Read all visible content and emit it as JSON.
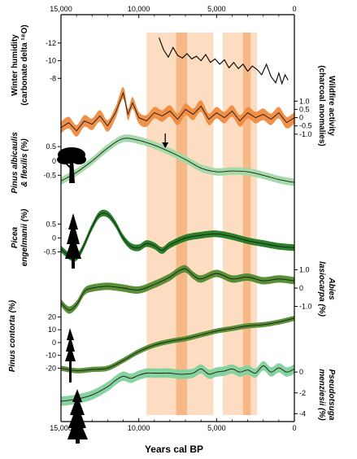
{
  "chart_data": {
    "type": "line",
    "xlabel": "Years cal BP",
    "x_ticks": [
      "15,000",
      "10,000",
      "5,000",
      "0"
    ],
    "xlim": [
      15000,
      0
    ],
    "shaded_bands": [
      {
        "from": 9500,
        "to": 5200,
        "color": "#fbd7b6"
      },
      {
        "from": 7600,
        "to": 6900,
        "color": "#f5b27c"
      },
      {
        "from": 4600,
        "to": 2400,
        "color": "#fbd7b6"
      },
      {
        "from": 3300,
        "to": 2800,
        "color": "#f5b27c"
      }
    ],
    "annotation": {
      "type": "arrow",
      "x": 8300
    },
    "panels": [
      {
        "id": "humidity",
        "label_lines": [
          "Winter humidity",
          "(carbonate delta ¹⁸O)"
        ],
        "label_side": "left",
        "ticks": [
          "-12",
          "-10",
          "-8"
        ],
        "tick_values": [
          -12,
          -10,
          -8
        ],
        "ylim": [
          -13,
          -6
        ],
        "inverted": true,
        "color": "#000000",
        "x": [
          8700,
          8400,
          8100,
          7800,
          7500,
          7200,
          6900,
          6600,
          6300,
          6000,
          5700,
          5400,
          5100,
          4800,
          4500,
          4200,
          3900,
          3600,
          3300,
          3000,
          2700,
          2400,
          2100,
          1800,
          1500,
          1200,
          1000,
          800,
          600,
          400
        ],
        "y": [
          -12.6,
          -11.2,
          -10.4,
          -11.5,
          -10.6,
          -10.3,
          -10.8,
          -10.2,
          -10.5,
          -10.0,
          -10.7,
          -9.8,
          -10.2,
          -9.6,
          -10.1,
          -9.2,
          -9.8,
          -9.1,
          -9.6,
          -8.8,
          -9.4,
          -9.0,
          -8.4,
          -9.6,
          -8.2,
          -7.5,
          -8.6,
          -7.4,
          -8.4,
          -7.8
        ]
      },
      {
        "id": "wildfire",
        "label_lines": [
          "Wildfire activity",
          "(charcoal anomalies)"
        ],
        "label_side": "right",
        "ticks": [
          "1.0",
          "0.5",
          "0",
          "-0.5",
          "-1.0"
        ],
        "tick_values": [
          1.0,
          0.5,
          0,
          -0.5,
          -1.0
        ],
        "ylim": [
          -1.5,
          2.0
        ],
        "color": "#1a1a1a",
        "band_color": "#f08a3e",
        "band_width": 0.35,
        "x": [
          15000,
          14500,
          14000,
          13500,
          13000,
          12500,
          12000,
          11500,
          11000,
          10700,
          10400,
          10000,
          9500,
          9000,
          8500,
          8000,
          7500,
          7000,
          6500,
          6000,
          5500,
          5000,
          4500,
          4000,
          3500,
          3000,
          2500,
          2000,
          1500,
          1000,
          500,
          0
        ],
        "y": [
          -0.6,
          -0.3,
          -0.8,
          -0.2,
          -0.4,
          0.1,
          -0.5,
          0.3,
          1.5,
          0.2,
          0.9,
          0.0,
          -0.2,
          0.3,
          0.1,
          0.4,
          -0.1,
          0.5,
          0.2,
          0.7,
          -0.1,
          0.3,
          0.0,
          0.4,
          -0.2,
          0.3,
          0.0,
          0.2,
          -0.1,
          0.3,
          -0.3,
          0.0
        ]
      },
      {
        "id": "pinus-albicaulis",
        "label_lines": [
          "Pinus albicaulis",
          "& flexilis (%)"
        ],
        "label_side": "left",
        "italic": true,
        "ticks": [
          "0.5",
          "0",
          "-0.5"
        ],
        "tick_values": [
          0.5,
          0,
          -0.5
        ],
        "ylim": [
          -1.2,
          1.3
        ],
        "color": "#1a1a1a",
        "band_color": "#9fd9a7",
        "band_width": 0.13,
        "x": [
          15000,
          14000,
          13000,
          12000,
          11000,
          10000,
          9000,
          8000,
          7000,
          6000,
          5000,
          4000,
          3000,
          2000,
          1000,
          0
        ],
        "y": [
          -0.7,
          -0.4,
          0.0,
          0.45,
          0.78,
          0.72,
          0.55,
          0.32,
          0.05,
          -0.25,
          -0.38,
          -0.35,
          -0.38,
          -0.5,
          -0.65,
          -0.75
        ]
      },
      {
        "id": "picea",
        "label_lines": [
          "Picea",
          "engelmanii (%)"
        ],
        "label_side": "left",
        "italic": true,
        "ticks": [
          "0.5",
          "0",
          "-0.5"
        ],
        "tick_values": [
          0.5,
          0,
          -0.5
        ],
        "ylim": [
          -1.1,
          1.3
        ],
        "color": "#1a1a1a",
        "band_color": "#1d7a1d",
        "band_width": 0.12,
        "x": [
          15000,
          14000,
          13000,
          12500,
          12000,
          11500,
          11000,
          10500,
          10000,
          9500,
          9000,
          8500,
          8000,
          7000,
          6000,
          5000,
          4000,
          3000,
          2000,
          1000,
          0
        ],
        "y": [
          -0.4,
          -0.7,
          0.4,
          0.85,
          0.85,
          0.5,
          0.0,
          -0.3,
          -0.35,
          -0.2,
          -0.28,
          -0.45,
          -0.25,
          0.0,
          0.1,
          0.15,
          0.05,
          -0.1,
          -0.2,
          -0.3,
          -0.35
        ]
      },
      {
        "id": "abies",
        "label_lines": [
          "Abies",
          "lasiocarpa (%)"
        ],
        "label_side": "right",
        "italic": true,
        "ticks": [
          "1.0",
          "0",
          "-1.0"
        ],
        "tick_values": [
          1.0,
          0,
          -1.0
        ],
        "ylim": [
          -1.6,
          1.6
        ],
        "color": "#1a1a1a",
        "band_color": "#4f8a2a",
        "band_width": 0.2,
        "x": [
          15000,
          14500,
          14000,
          13500,
          13000,
          12000,
          11000,
          10000,
          9000,
          8000,
          7500,
          7000,
          6500,
          6000,
          5000,
          4000,
          3000,
          2000,
          1000,
          0
        ],
        "y": [
          -0.8,
          -1.2,
          -0.9,
          -0.2,
          0.0,
          0.1,
          0.0,
          -0.1,
          0.2,
          0.6,
          0.9,
          1.05,
          0.7,
          0.5,
          0.8,
          0.5,
          0.6,
          0.4,
          0.5,
          0.4
        ]
      },
      {
        "id": "pinus-contorta",
        "label_lines": [
          "Pinus contorta (%)"
        ],
        "label_side": "left",
        "italic": true,
        "ticks": [
          "20",
          "10",
          "0",
          "-10",
          "-20"
        ],
        "tick_values": [
          20,
          10,
          0,
          -10,
          -20
        ],
        "ylim": [
          -28,
          26
        ],
        "color": "#1a1a1a",
        "band_color": "#4f8a2a",
        "band_width": 2,
        "x": [
          15000,
          14000,
          13000,
          12000,
          11000,
          10000,
          9000,
          8000,
          7000,
          6000,
          5000,
          4000,
          3000,
          2000,
          1000,
          0
        ],
        "y": [
          -20,
          -22,
          -21,
          -20,
          -14,
          -7,
          -2,
          1,
          3,
          6,
          9,
          11,
          13,
          14,
          16,
          19
        ]
      },
      {
        "id": "pseudotsuga",
        "label_lines": [
          "Pseudotsuga",
          "menziesii (%)"
        ],
        "label_side": "right",
        "italic": true,
        "ticks": [
          "0",
          "-2",
          "-4"
        ],
        "tick_values": [
          0,
          -2,
          -4
        ],
        "ylim": [
          -4.6,
          1.5
        ],
        "color": "#1a1a1a",
        "band_color": "#7fd19b",
        "band_width": 0.45,
        "x": [
          15000,
          14000,
          13000,
          12000,
          11500,
          11000,
          10500,
          10000,
          9500,
          9000,
          8500,
          8000,
          7500,
          7000,
          6500,
          6000,
          5500,
          5000,
          4500,
          4000,
          3500,
          3000,
          2500,
          2000,
          1500,
          1000,
          500,
          0
        ],
        "y": [
          -2.8,
          -2.6,
          -2.2,
          -1.4,
          -0.8,
          -0.4,
          -0.6,
          -0.3,
          -0.1,
          -0.1,
          -0.1,
          -0.1,
          -0.2,
          -0.2,
          -0.1,
          0.3,
          -0.2,
          0.0,
          0.1,
          0.3,
          0.0,
          0.2,
          -0.1,
          0.6,
          0.0,
          0.4,
          0.0,
          0.3
        ]
      }
    ]
  }
}
